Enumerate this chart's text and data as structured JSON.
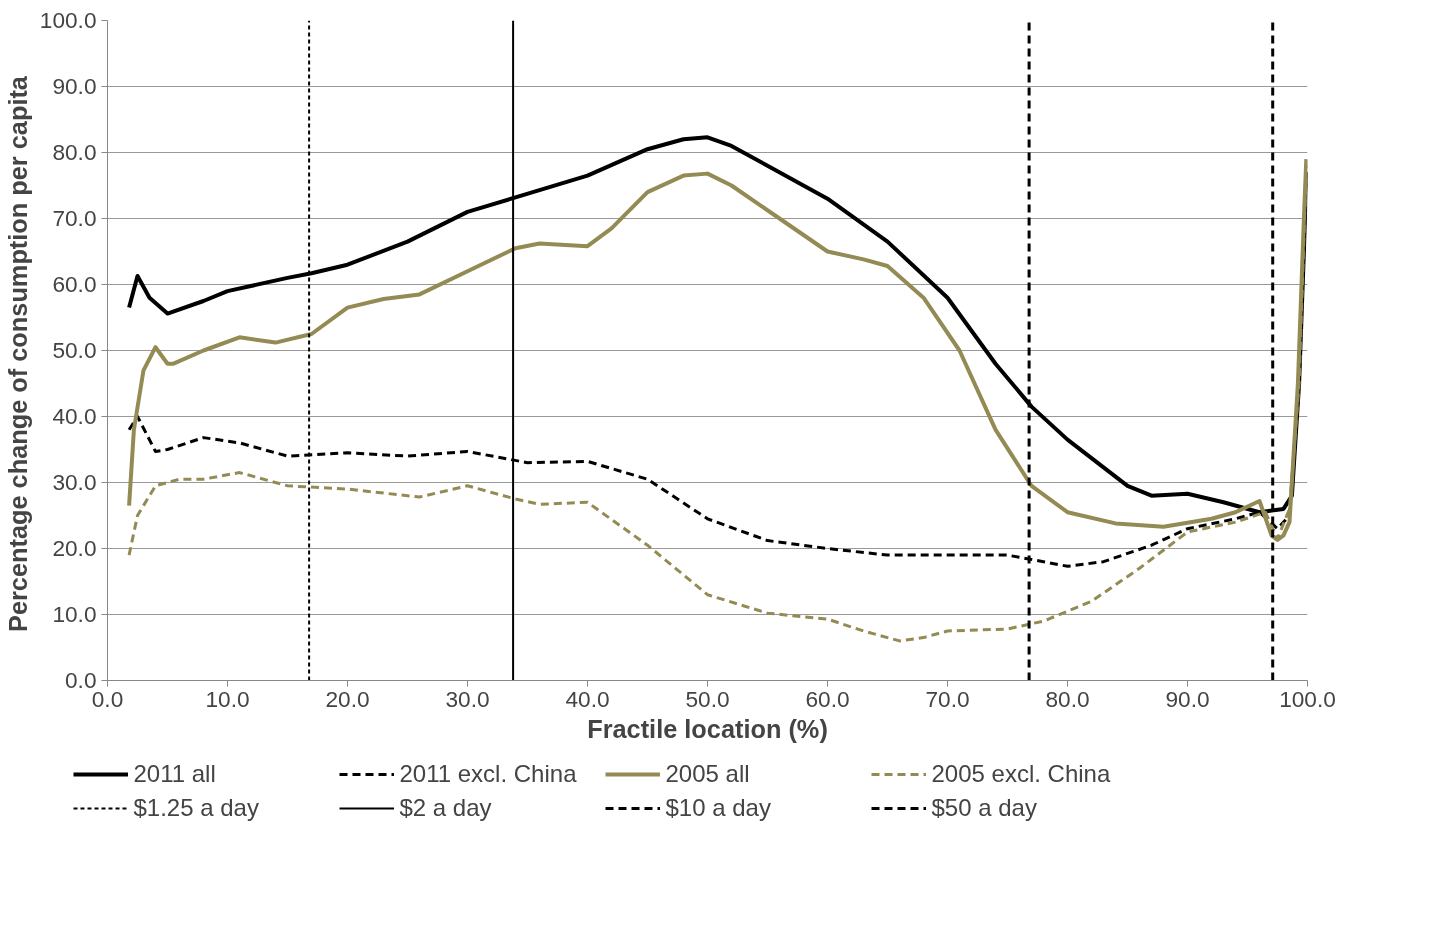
{
  "chart_data": {
    "type": "line",
    "xlabel": "Fractile location (%)",
    "ylabel": "Percentage change of  consumption per capita",
    "xlim": [
      0,
      100
    ],
    "ylim": [
      0,
      100
    ],
    "xticks": [
      {
        "value": 0,
        "label": "0.0"
      },
      {
        "value": 10,
        "label": "10.0"
      },
      {
        "value": 20,
        "label": "20.0"
      },
      {
        "value": 30,
        "label": "30.0"
      },
      {
        "value": 40,
        "label": "40.0"
      },
      {
        "value": 50,
        "label": "50.0"
      },
      {
        "value": 60,
        "label": "60.0"
      },
      {
        "value": 70,
        "label": "70.0"
      },
      {
        "value": 80,
        "label": "80.0"
      },
      {
        "value": 90,
        "label": "90.0"
      },
      {
        "value": 100,
        "label": "100.0"
      }
    ],
    "yticks": [
      {
        "value": 0,
        "label": "0.0"
      },
      {
        "value": 10,
        "label": "10.0"
      },
      {
        "value": 20,
        "label": "20.0"
      },
      {
        "value": 30,
        "label": "30.0"
      },
      {
        "value": 40,
        "label": "40.0"
      },
      {
        "value": 50,
        "label": "50.0"
      },
      {
        "value": 60,
        "label": "60.0"
      },
      {
        "value": 70,
        "label": "70.0"
      },
      {
        "value": 80,
        "label": "80.0"
      },
      {
        "value": 90,
        "label": "90.0"
      },
      {
        "value": 100,
        "label": "100.0"
      }
    ],
    "grid": "y",
    "legend": "bottom",
    "marker": "none",
    "series": [
      {
        "name": "2011 all",
        "color": "#000000",
        "line_style": "solid",
        "x": [
          1.8,
          2.5,
          3.5,
          5,
          8,
          10,
          15,
          17,
          20,
          25,
          30,
          34,
          40,
          45,
          48,
          50,
          52,
          55,
          60,
          65,
          70,
          74,
          77,
          80,
          85,
          87,
          90,
          93,
          96,
          98,
          98.7,
          99.3,
          99.7,
          99.9
        ],
        "values": [
          56.5,
          61.3,
          58,
          55.6,
          57.5,
          59,
          61,
          61.7,
          63,
          66.5,
          71,
          73.2,
          76.5,
          80.5,
          82,
          82.3,
          81,
          78,
          73,
          66.5,
          58,
          48,
          41.5,
          36.5,
          29.5,
          28,
          28.3,
          27,
          25.5,
          26,
          28,
          45,
          65,
          77
        ]
      },
      {
        "name": "2011 excl. China",
        "color": "#000000",
        "line_style": "dashed",
        "x": [
          1.8,
          2.5,
          4,
          5,
          8,
          11,
          15,
          20,
          25,
          30,
          35,
          40,
          45,
          50,
          55,
          60,
          65,
          70,
          75,
          78,
          80,
          83,
          87,
          90,
          94,
          96,
          97.5,
          98.5,
          99.3,
          99.9
        ],
        "values": [
          38,
          40,
          34.7,
          35,
          36.8,
          36,
          34,
          34.5,
          34,
          34.7,
          33,
          33.2,
          30.5,
          24.5,
          21.2,
          20,
          19,
          19,
          19,
          18,
          17.3,
          18,
          20.5,
          23,
          24.5,
          25.5,
          23,
          25,
          45,
          77
        ]
      },
      {
        "name": "2005 all",
        "color": "#948a54",
        "line_style": "solid",
        "x": [
          1.8,
          2.2,
          3,
          4,
          5,
          5.5,
          8,
          11,
          14,
          17,
          20,
          23,
          26,
          30,
          34,
          36,
          40,
          42,
          45,
          48,
          50,
          52,
          56,
          60,
          63,
          65,
          68,
          71,
          74,
          77,
          80,
          84,
          88,
          92,
          94,
          96,
          97,
          97.5,
          98,
          98.5,
          99.2,
          99.7,
          99.9
        ],
        "values": [
          26.5,
          38,
          47,
          50.5,
          48,
          48,
          50,
          52,
          51.2,
          52.5,
          56.5,
          57.8,
          58.5,
          62,
          65.5,
          66.2,
          65.8,
          68.5,
          74,
          76.5,
          76.8,
          75,
          70,
          65,
          63.8,
          62.8,
          58,
          50,
          38,
          29.5,
          25.5,
          23.8,
          23.3,
          24.5,
          25.5,
          27.2,
          22,
          21.3,
          22,
          24,
          45,
          70,
          79
        ]
      },
      {
        "name": "2005 excl. China",
        "color": "#948a54",
        "line_style": "dashed",
        "x": [
          1.8,
          2.5,
          4,
          6,
          8,
          11,
          15,
          20,
          26,
          30,
          34,
          36,
          40,
          45,
          50,
          55,
          60,
          63,
          66,
          68,
          70,
          75,
          78,
          82,
          86,
          90,
          94,
          96.5,
          97.5,
          98.5,
          99.3,
          99.9
        ],
        "values": [
          19,
          25,
          29.5,
          30.5,
          30.5,
          31.5,
          29.5,
          29,
          27.8,
          29.5,
          27.5,
          26.7,
          27,
          20.5,
          13,
          10.2,
          9.3,
          7.5,
          6,
          6.5,
          7.5,
          7.8,
          9,
          12,
          17,
          22.5,
          24,
          25.5,
          21.5,
          26,
          45,
          78
        ]
      }
    ],
    "ref_lines": [
      {
        "axis": "x",
        "value": 16.8,
        "label": "$1.25 a day",
        "color": "#000000",
        "line_style": "dotted"
      },
      {
        "axis": "x",
        "value": 33.8,
        "label": "$2 a day",
        "color": "#000000",
        "line_style": "solid"
      },
      {
        "axis": "x",
        "value": 76.8,
        "label": "$10 a day",
        "color": "#000000",
        "line_style": "dashed"
      },
      {
        "axis": "x",
        "value": 97.1,
        "label": "$50 a day",
        "color": "#000000",
        "line_style": "dashed"
      }
    ]
  }
}
